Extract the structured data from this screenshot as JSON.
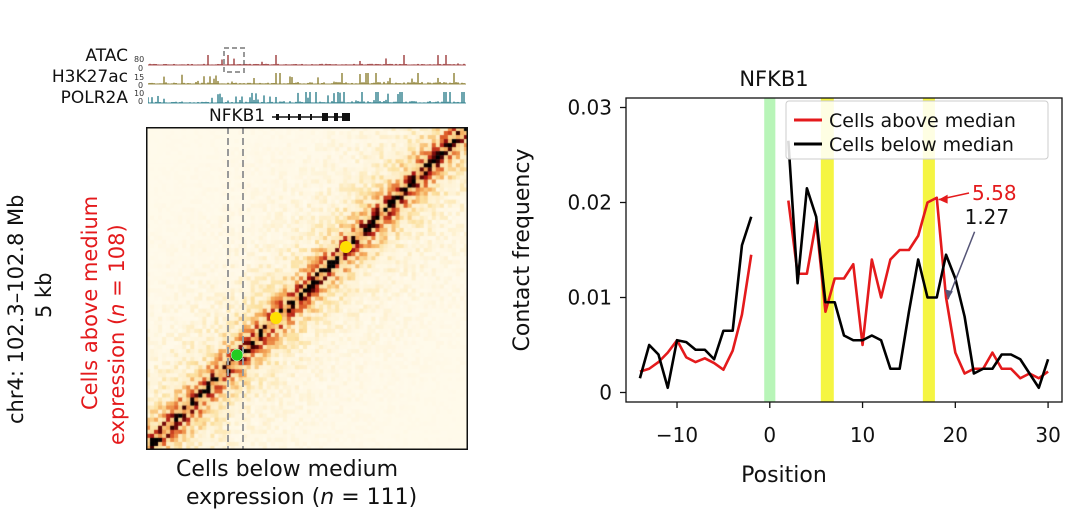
{
  "figure": {
    "left_panel": {
      "tracks": [
        {
          "name": "ATAC",
          "scale_max": "80",
          "scale_min": "0",
          "color": "#8b1a1a"
        },
        {
          "name": "H3K27ac",
          "scale_max": "15",
          "scale_min": "0",
          "color": "#7a6a12"
        },
        {
          "name": "POLR2A",
          "scale_max": "10",
          "scale_min": "0",
          "color": "#0e6b7a"
        }
      ],
      "gene_label": "NFKB1",
      "y_axis_line1": "chr4: 102.3–102.8 Mb",
      "y_axis_line2": "5 kb",
      "upper_label_line1": "Cells above medium",
      "upper_label_line2_pre": "expression (",
      "upper_label_n": "n",
      "upper_label_line2_post": " = 108)",
      "lower_label_line1": "Cells below medium",
      "lower_label_line2_pre": "expression (",
      "lower_label_n": "n",
      "lower_label_line2_post": " = 111)",
      "dot_colors": {
        "green": "#22cc22",
        "yellow": "#ffe000"
      }
    }
  },
  "chart_data": {
    "type": "line",
    "title": "NFKB1",
    "xlabel": "Position",
    "ylabel": "Contact frequency",
    "xlim": [
      -15.5,
      31.5
    ],
    "ylim": [
      -0.001,
      0.031
    ],
    "xticks": [
      -10,
      0,
      10,
      20,
      30
    ],
    "xtick_labels": [
      "−10",
      "0",
      "10",
      "20",
      "30"
    ],
    "yticks": [
      0,
      0.01,
      0.02,
      0.03
    ],
    "ytick_labels": [
      "0",
      "0.01",
      "0.02",
      "0.03"
    ],
    "legend_position": "top-right",
    "highlights": [
      {
        "x": [
          -0.6,
          0.6
        ],
        "color": "#b8f5b8"
      },
      {
        "x": [
          5.5,
          6.9
        ],
        "color": "#f5f542"
      },
      {
        "x": [
          16.5,
          17.8
        ],
        "color": "#f5f542"
      }
    ],
    "series": [
      {
        "name": "Cells above median",
        "color": "#e41a1c",
        "segments": [
          {
            "x": [
              -14,
              -13,
              -12,
              -11,
              -10,
              -9,
              -8,
              -7,
              -6,
              -5,
              -4,
              -3,
              -2
            ],
            "y": [
              0.0022,
              0.0025,
              0.0032,
              0.0042,
              0.0055,
              0.0037,
              0.0032,
              0.0036,
              0.0031,
              0.0024,
              0.0044,
              0.0082,
              0.0145
            ]
          },
          {
            "x": [
              2,
              3,
              4,
              5,
              6,
              7,
              8,
              9,
              10,
              11,
              12,
              13,
              14,
              15,
              16,
              17,
              18,
              19,
              20,
              21,
              22,
              23,
              24,
              25,
              26,
              27,
              28,
              29,
              30
            ],
            "y": [
              0.0202,
              0.0125,
              0.0125,
              0.018,
              0.0085,
              0.012,
              0.012,
              0.0135,
              0.005,
              0.014,
              0.01,
              0.014,
              0.015,
              0.015,
              0.0165,
              0.02,
              0.0205,
              0.01,
              0.0042,
              0.002,
              0.0025,
              0.0025,
              0.0042,
              0.0025,
              0.0025,
              0.0015,
              0.002,
              0.0015,
              0.0022
            ]
          }
        ]
      },
      {
        "name": "Cells below median",
        "color": "#000000",
        "segments": [
          {
            "x": [
              -14,
              -13,
              -12,
              -11,
              -10,
              -9,
              -8,
              -7,
              -6,
              -5,
              -4,
              -3,
              -2
            ],
            "y": [
              0.0015,
              0.005,
              0.004,
              0.0005,
              0.0055,
              0.0053,
              0.0045,
              0.0045,
              0.0035,
              0.0065,
              0.0065,
              0.0155,
              0.0185
            ]
          },
          {
            "x": [
              2,
              3,
              4,
              5,
              6,
              7,
              8,
              9,
              10,
              11,
              12,
              13,
              14,
              15,
              16,
              17,
              18,
              19,
              20,
              21,
              22,
              23,
              24,
              25,
              26,
              27,
              28,
              29,
              30
            ],
            "y": [
              0.0265,
              0.0115,
              0.0215,
              0.0185,
              0.0095,
              0.0095,
              0.006,
              0.0055,
              0.0055,
              0.006,
              0.0055,
              0.0025,
              0.0025,
              0.0085,
              0.014,
              0.01,
              0.01,
              0.0145,
              0.012,
              0.008,
              0.002,
              0.0025,
              0.0025,
              0.004,
              0.004,
              0.0035,
              0.002,
              0.0005,
              0.0035
            ]
          }
        ]
      }
    ],
    "annotations": [
      {
        "text": "5.58",
        "color": "#e41a1c",
        "x": 21.8,
        "y": 0.021
      },
      {
        "text": "1.27",
        "color": "#111111",
        "x": 21.0,
        "y": 0.0185
      }
    ]
  }
}
